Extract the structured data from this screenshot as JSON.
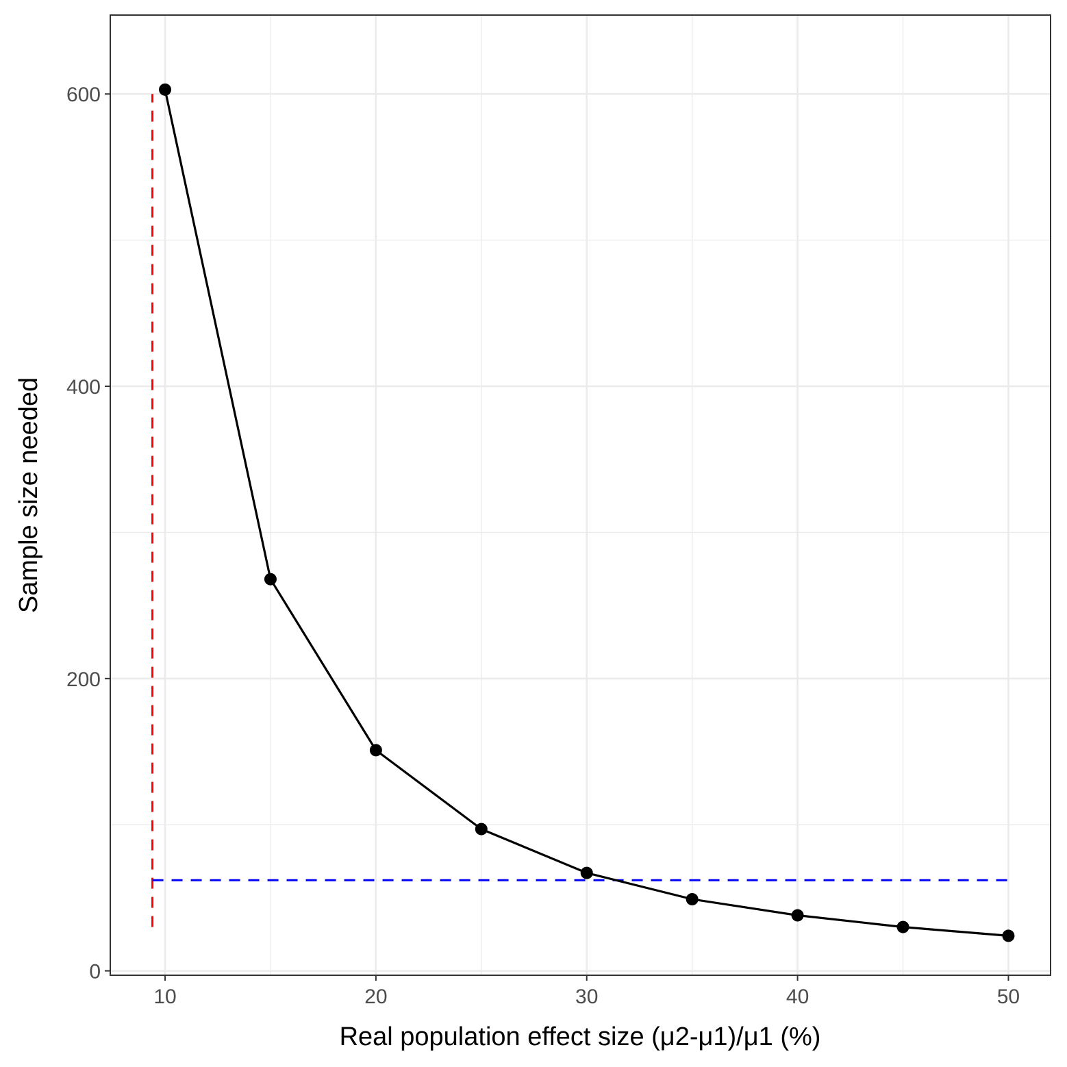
{
  "chart_data": {
    "type": "line",
    "title": "",
    "xlabel": "Real population effect size (μ2-μ1)/μ1 (%)",
    "ylabel": "Sample size needed",
    "xlim": [
      7.4,
      52
    ],
    "ylim": [
      -3,
      654
    ],
    "x_ticks": [
      10,
      20,
      30,
      40,
      50
    ],
    "y_ticks": [
      0,
      200,
      400,
      600
    ],
    "x_minor_grid": [
      15,
      25,
      35,
      45
    ],
    "y_minor_grid": [
      100,
      300,
      500
    ],
    "grid": true,
    "series": [
      {
        "x": [
          10,
          15,
          20,
          25,
          30,
          35,
          40,
          45,
          50
        ],
        "y": [
          603,
          268,
          151,
          97,
          67,
          49,
          38,
          30,
          24
        ],
        "color": "#000000",
        "markers": true
      }
    ],
    "reference_lines": [
      {
        "orientation": "vertical",
        "x": 9.4,
        "y_range": [
          30,
          600
        ],
        "color": "#ff0000",
        "style": "dashed"
      },
      {
        "orientation": "horizontal",
        "y": 62,
        "x_range": [
          9.4,
          50
        ],
        "color": "#0000ff",
        "style": "dashed"
      }
    ]
  }
}
